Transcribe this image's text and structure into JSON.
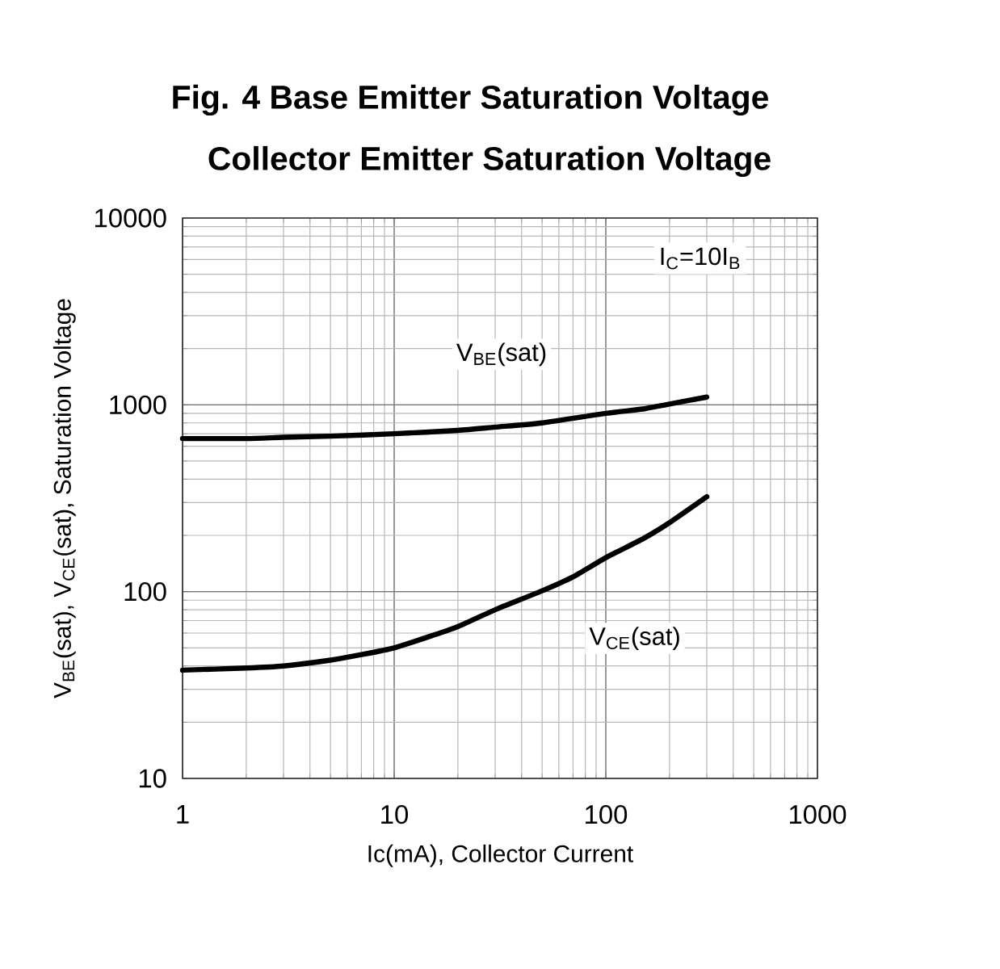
{
  "chart_data": {
    "type": "line",
    "title": "Fig. 4 Base Emitter Saturation Voltage",
    "subtitle": "Collector Emitter Saturation Voltage",
    "xlabel": "Ic(mA), Collector Current",
    "ylabel": "V$_{BE}$(sat), V$_{CE}$(sat), Saturation Voltage",
    "annotations": [
      "I$_{C}$=10I$_{B}$"
    ],
    "series": [
      {
        "name": "V$_{BE}$(sat)",
        "color": "#000000",
        "x": [
          1,
          2,
          3,
          5,
          10,
          20,
          30,
          50,
          100,
          150,
          200,
          300
        ],
        "values": [
          660,
          660,
          670,
          680,
          700,
          730,
          760,
          800,
          900,
          950,
          1010,
          1100
        ]
      },
      {
        "name": "V$_{CE}$(sat)",
        "color": "#000000",
        "x": [
          1,
          2,
          3,
          5,
          7,
          10,
          15,
          20,
          30,
          50,
          70,
          100,
          150,
          200,
          300
        ],
        "values": [
          38,
          39,
          40,
          43,
          46,
          50,
          58,
          65,
          80,
          101,
          120,
          152,
          192,
          234,
          322
        ]
      }
    ],
    "xlim": [
      1,
      1000
    ],
    "ylim": [
      10,
      10000
    ],
    "xticks": [
      1,
      10,
      100,
      1000
    ],
    "yticks": [
      10,
      100,
      1000,
      10000
    ],
    "log": "xy",
    "grid": true
  }
}
